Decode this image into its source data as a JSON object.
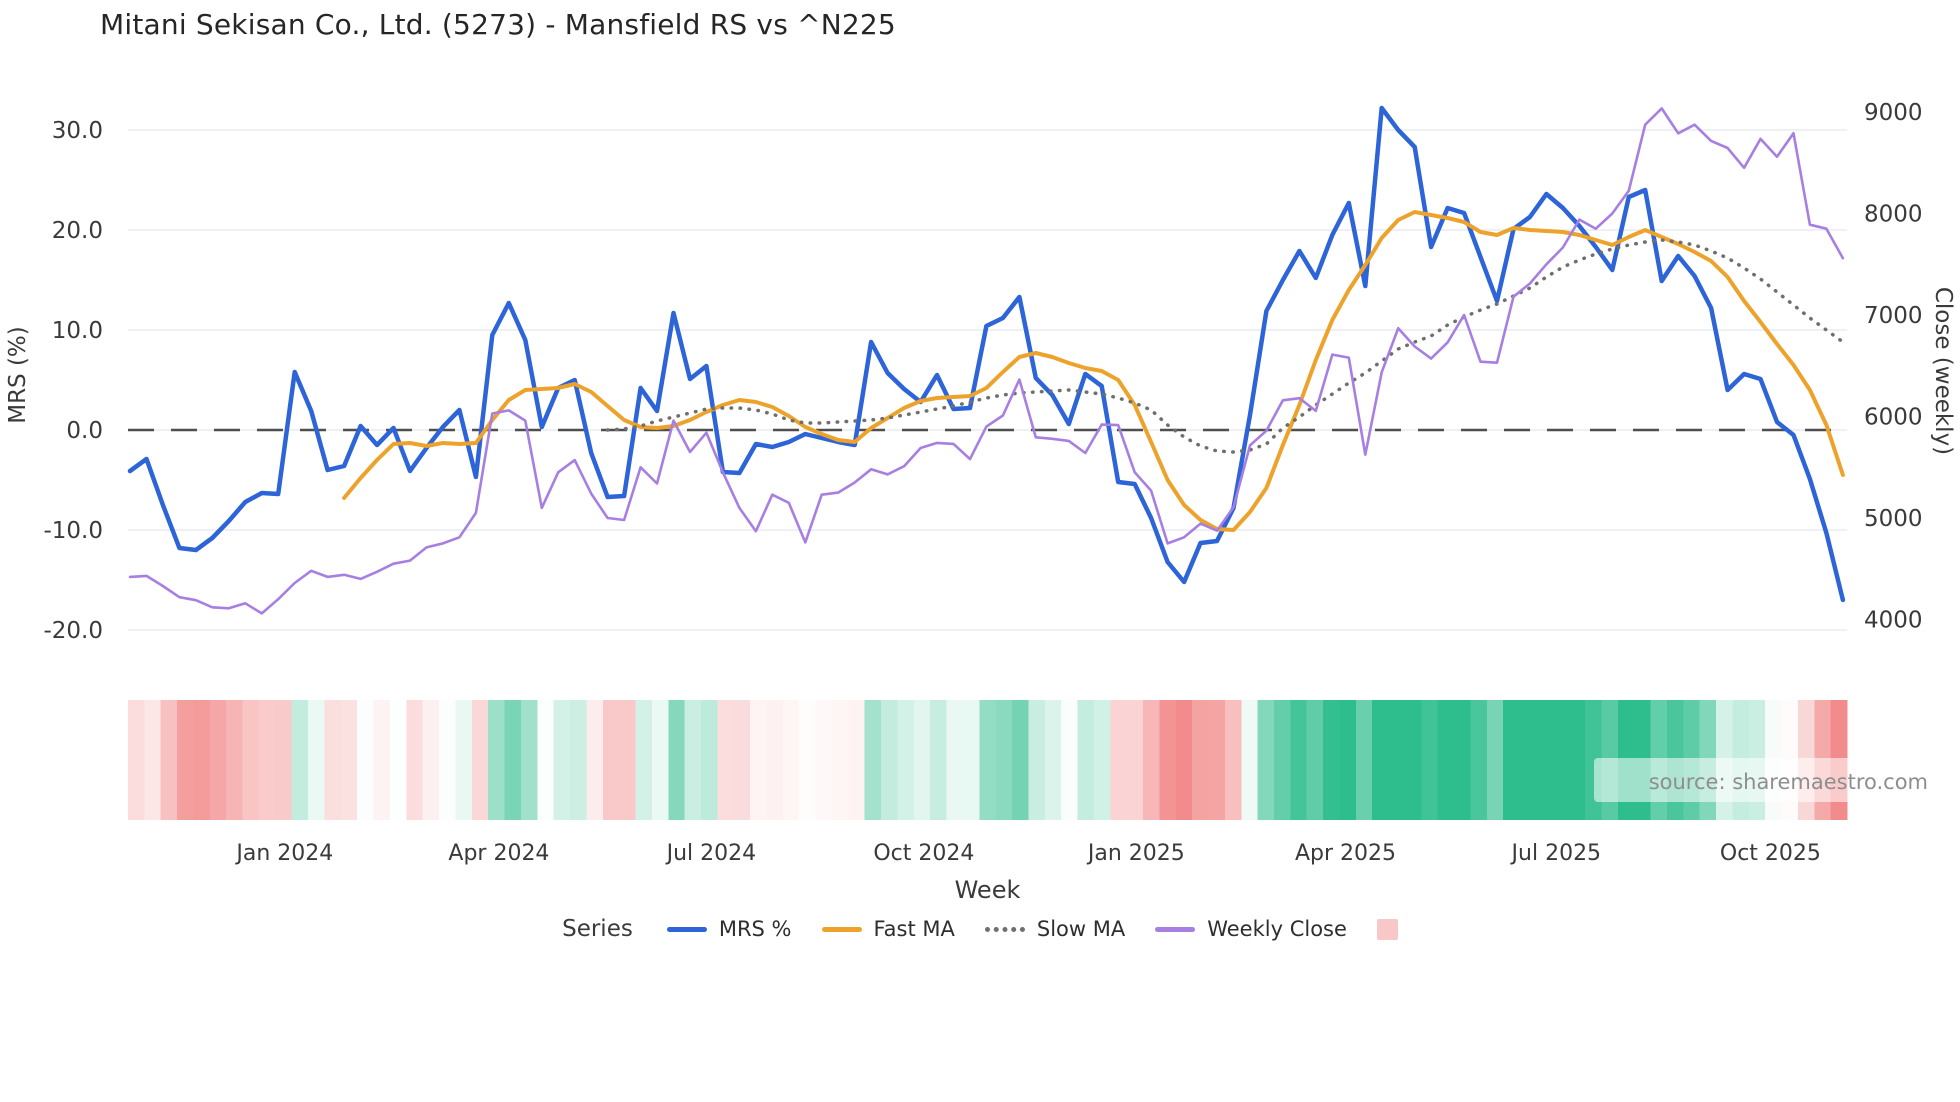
{
  "title": "Mitani Sekisan Co., Ltd. (5273) - Mansfield RS vs ^N225",
  "watermark": "source: sharemaestro.com",
  "axes": {
    "left": {
      "title": "MRS (%)",
      "tick_labels": [
        "30.0",
        "20.0",
        "10.0",
        "0.0",
        "-10.0",
        "-20.0"
      ],
      "tick_values": [
        30,
        20,
        10,
        0,
        -10,
        -20
      ]
    },
    "right": {
      "title": "Close (weekly)",
      "tick_labels": [
        "9000",
        "8000",
        "7000",
        "6000",
        "5000",
        "4000"
      ],
      "tick_values": [
        9000,
        8000,
        7000,
        6000,
        5000,
        4000
      ]
    },
    "x": {
      "title": "Week",
      "ticks": [
        {
          "label": "Jan 2024",
          "week": 9.4
        },
        {
          "label": "Apr 2024",
          "week": 22.4
        },
        {
          "label": "Jul 2024",
          "week": 35.3
        },
        {
          "label": "Oct 2024",
          "week": 48.2
        },
        {
          "label": "Jan 2025",
          "week": 61.1
        },
        {
          "label": "Apr 2025",
          "week": 73.8
        },
        {
          "label": "Jul 2025",
          "week": 86.6
        },
        {
          "label": "Oct 2025",
          "week": 99.6
        }
      ]
    }
  },
  "legend": {
    "title": "Series",
    "items": [
      {
        "label": "MRS %",
        "color": "#2d64d8",
        "style": "solid"
      },
      {
        "label": "Fast MA",
        "color": "#eda32b",
        "style": "solid"
      },
      {
        "label": "Slow MA",
        "color": "#6f6f6f",
        "style": "dotted"
      },
      {
        "label": "Weekly Close",
        "color": "#a77fe2",
        "style": "solid"
      },
      {
        "label": "",
        "color": "#f8c8c8",
        "style": "box"
      }
    ]
  },
  "chart_data": {
    "type": "line",
    "n_weeks": 105,
    "xlabel": "Week",
    "ylabel_left": "MRS (%)",
    "ylabel_right": "Close (weekly)",
    "ylim_left": [
      -20,
      30
    ],
    "ylim_right": [
      4000,
      9000
    ],
    "grid": true,
    "zero_line": true,
    "legend_position": "bottom",
    "heatmap": {
      "source": "MRS %",
      "positive_color": "#2ebd8d",
      "negative_color": "#f28c8c",
      "pos_saturation_at": 20,
      "neg_saturation_at": 14
    },
    "series": [
      {
        "name": "MRS %",
        "axis": "left",
        "color": "#2d64d8",
        "width": 4.5,
        "style": "solid",
        "values": [
          -4.1,
          -2.9,
          -7.5,
          -11.8,
          -12.0,
          -10.8,
          -9.1,
          -7.2,
          -6.3,
          -6.4,
          5.8,
          1.9,
          -4.0,
          -3.6,
          0.4,
          -1.5,
          0.2,
          -4.1,
          -1.8,
          0.3,
          2.0,
          -4.7,
          9.5,
          12.7,
          9.0,
          0.3,
          4.2,
          5.0,
          -2.3,
          -6.7,
          -6.6,
          4.2,
          1.9,
          11.7,
          5.1,
          6.4,
          -4.2,
          -4.3,
          -1.4,
          -1.7,
          -1.2,
          -0.4,
          -0.8,
          -1.2,
          -1.5,
          8.8,
          5.7,
          4.1,
          2.8,
          5.5,
          2.1,
          2.2,
          10.4,
          11.2,
          13.3,
          5.2,
          3.5,
          0.6,
          5.6,
          4.4,
          -5.2,
          -5.4,
          -8.8,
          -13.2,
          -15.2,
          -11.3,
          -11.1,
          -7.8,
          1.5,
          11.9,
          15.0,
          17.9,
          15.2,
          19.5,
          22.7,
          14.4,
          32.2,
          30.0,
          28.3,
          18.3,
          22.2,
          21.7,
          17.3,
          12.9,
          20.1,
          21.3,
          23.6,
          22.2,
          20.4,
          18.3,
          16.0,
          23.3,
          24.0,
          14.9,
          17.4,
          15.4,
          12.2,
          4.0,
          5.6,
          5.1,
          0.8,
          -0.5,
          -4.9,
          -10.3,
          -17.0
        ]
      },
      {
        "name": "Fast MA",
        "axis": "left",
        "color": "#eda32b",
        "width": 4,
        "style": "solid",
        "values": [
          null,
          null,
          null,
          null,
          null,
          null,
          null,
          null,
          null,
          null,
          null,
          null,
          null,
          -6.8,
          -4.8,
          -3.0,
          -1.4,
          -1.3,
          -1.6,
          -1.3,
          -1.4,
          -1.3,
          1.0,
          3.0,
          4.0,
          4.1,
          4.2,
          4.6,
          3.8,
          2.4,
          1.0,
          0.3,
          0.2,
          0.4,
          1.0,
          1.8,
          2.5,
          3.0,
          2.8,
          2.3,
          1.4,
          0.3,
          -0.4,
          -1.0,
          -1.2,
          0.2,
          1.2,
          2.2,
          2.9,
          3.2,
          3.3,
          3.4,
          4.2,
          5.8,
          7.3,
          7.7,
          7.3,
          6.7,
          6.2,
          5.9,
          5.0,
          2.5,
          -1.2,
          -5.0,
          -7.5,
          -9.0,
          -9.9,
          -10.0,
          -8.2,
          -5.8,
          -1.5,
          2.5,
          7.0,
          11.0,
          14.0,
          16.5,
          19.2,
          21.0,
          21.8,
          21.5,
          21.2,
          20.8,
          19.8,
          19.5,
          20.2,
          20.0,
          19.9,
          19.8,
          19.5,
          19.0,
          18.5,
          19.3,
          20.0,
          19.3,
          18.6,
          17.8,
          16.9,
          15.3,
          12.9,
          10.8,
          8.6,
          6.5,
          4.0,
          0.5,
          -4.5
        ]
      },
      {
        "name": "Slow MA",
        "axis": "left",
        "color": "#6f6f6f",
        "width": 3.5,
        "style": "dotted",
        "values": [
          null,
          null,
          null,
          null,
          null,
          null,
          null,
          null,
          null,
          null,
          null,
          null,
          null,
          null,
          null,
          null,
          null,
          null,
          null,
          null,
          null,
          null,
          null,
          null,
          null,
          null,
          null,
          null,
          null,
          0.0,
          0.1,
          0.4,
          0.9,
          1.3,
          1.7,
          2.1,
          2.2,
          2.2,
          2.0,
          1.6,
          1.0,
          0.7,
          0.7,
          0.8,
          0.9,
          1.0,
          1.2,
          1.5,
          1.8,
          2.1,
          2.4,
          2.8,
          3.2,
          3.5,
          3.7,
          3.8,
          3.9,
          4.0,
          3.8,
          3.6,
          3.2,
          2.7,
          2.0,
          0.5,
          -0.7,
          -1.6,
          -2.1,
          -2.2,
          -2.0,
          -1.4,
          0.2,
          1.3,
          2.5,
          3.6,
          4.7,
          5.7,
          6.9,
          8.1,
          8.8,
          9.4,
          10.5,
          11.3,
          12.0,
          12.6,
          13.4,
          14.2,
          15.3,
          16.3,
          17.0,
          17.6,
          18.1,
          18.5,
          18.8,
          19.0,
          18.8,
          18.5,
          17.9,
          17.2,
          16.2,
          15.1,
          13.8,
          12.5,
          11.2,
          10.0,
          8.8
        ]
      },
      {
        "name": "Weekly Close",
        "axis": "right",
        "color": "#a77fe2",
        "width": 2.6,
        "style": "solid",
        "values": [
          4420,
          4430,
          4330,
          4220,
          4190,
          4120,
          4110,
          4160,
          4060,
          4200,
          4360,
          4480,
          4420,
          4440,
          4400,
          4470,
          4550,
          4580,
          4710,
          4750,
          4810,
          5050,
          6030,
          6060,
          5960,
          5100,
          5450,
          5570,
          5240,
          5000,
          4980,
          5500,
          5340,
          5960,
          5650,
          5840,
          5450,
          5100,
          4870,
          5230,
          5150,
          4760,
          5230,
          5250,
          5350,
          5480,
          5430,
          5510,
          5690,
          5740,
          5730,
          5580,
          5900,
          6010,
          6365,
          5795,
          5780,
          5760,
          5640,
          5920,
          5915,
          5450,
          5270,
          4750,
          4810,
          4945,
          4875,
          5105,
          5715,
          5860,
          6160,
          6180,
          6055,
          6610,
          6580,
          5625,
          6435,
          6870,
          6690,
          6570,
          6730,
          7000,
          6540,
          6530,
          7180,
          7310,
          7500,
          7665,
          7940,
          7850,
          8000,
          8225,
          8875,
          9035,
          8790,
          8875,
          8715,
          8645,
          8450,
          8735,
          8560,
          8790,
          7890,
          7850,
          7560
        ]
      }
    ]
  }
}
